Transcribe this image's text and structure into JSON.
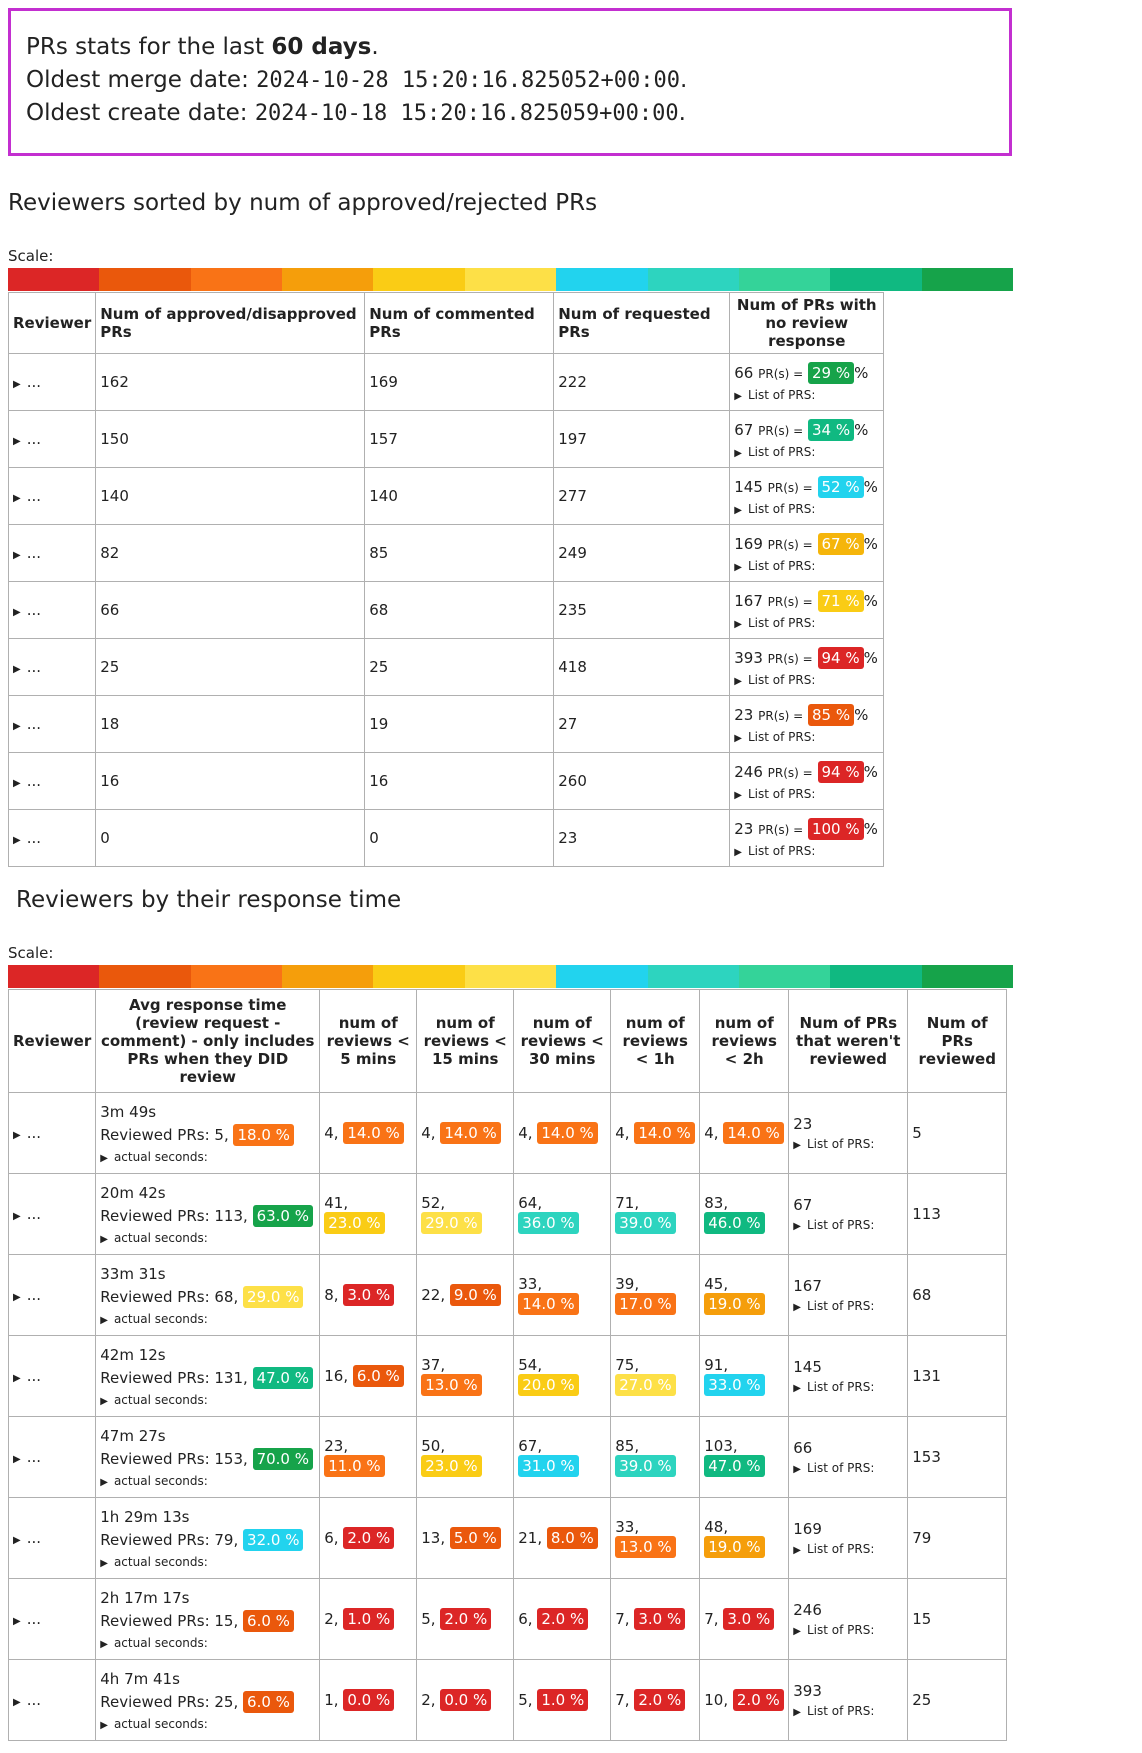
{
  "header": {
    "line1_prefix": "PRs stats for the last ",
    "line1_bold": "60 days",
    "line1_suffix": ".",
    "line2_label": "Oldest merge date: ",
    "line2_value": "2024-10-28 15:20:16.825052+00:00",
    "line3_label": "Oldest create date: ",
    "line3_value": "2024-10-18 15:20:16.825059+00:00",
    "period": "."
  },
  "scale": {
    "label": "Scale:",
    "colors": [
      "#dc2626",
      "#ea580c",
      "#f97316",
      "#f59e0b",
      "#facc15",
      "#fde047",
      "#22d3ee",
      "#2dd4bf",
      "#34d399",
      "#10b981",
      "#16a34a"
    ]
  },
  "table1": {
    "title": "Reviewers sorted by num of approved/rejected PRs",
    "headers": [
      "Reviewer",
      "Num of approved/disapproved PRs",
      "Num of commented PRs",
      "Num of requested PRs",
      "Num of PRs with no review response"
    ],
    "list_label": "List of PRS:",
    "prs_unit": "PR(s) =",
    "rows": [
      {
        "reviewer": "...",
        "approved": "162",
        "commented": "169",
        "requested": "222",
        "noresp_count": "66",
        "noresp_pct": "29 %",
        "pct_color": "#16a34a"
      },
      {
        "reviewer": "...",
        "approved": "150",
        "commented": "157",
        "requested": "197",
        "noresp_count": "67",
        "noresp_pct": "34 %",
        "pct_color": "#10b981"
      },
      {
        "reviewer": "...",
        "approved": "140",
        "commented": "140",
        "requested": "277",
        "noresp_count": "145",
        "noresp_pct": "52 %",
        "pct_color": "#22d3ee"
      },
      {
        "reviewer": "...",
        "approved": "82",
        "commented": "85",
        "requested": "249",
        "noresp_count": "169",
        "noresp_pct": "67 %",
        "pct_color": "#f5b50b"
      },
      {
        "reviewer": "...",
        "approved": "66",
        "commented": "68",
        "requested": "235",
        "noresp_count": "167",
        "noresp_pct": "71 %",
        "pct_color": "#facc15"
      },
      {
        "reviewer": "...",
        "approved": "25",
        "commented": "25",
        "requested": "418",
        "noresp_count": "393",
        "noresp_pct": "94 %",
        "pct_color": "#dc2626"
      },
      {
        "reviewer": "...",
        "approved": "18",
        "commented": "19",
        "requested": "27",
        "noresp_count": "23",
        "noresp_pct": "85 %",
        "pct_color": "#ea580c"
      },
      {
        "reviewer": "...",
        "approved": "16",
        "commented": "16",
        "requested": "260",
        "noresp_count": "246",
        "noresp_pct": "94 %",
        "pct_color": "#dc2626"
      },
      {
        "reviewer": "...",
        "approved": "0",
        "commented": "0",
        "requested": "23",
        "noresp_count": "23",
        "noresp_pct": "100 %",
        "pct_color": "#dc2626"
      }
    ]
  },
  "table2": {
    "title": "Reviewers by their response time",
    "headers": [
      "Reviewer",
      "Avg response time (review request - comment) - only includes PRs when they DID review",
      "num of reviews < 5 mins",
      "num of reviews < 15 mins",
      "num of reviews < 30 mins",
      "num of reviews < 1h",
      "num of reviews < 2h",
      "Num of PRs that weren't reviewed",
      "Num of PRs reviewed"
    ],
    "reviewed_label": "Reviewed PRs: ",
    "actual_label": "actual seconds:",
    "list_label": "List of PRS:",
    "rows": [
      {
        "reviewer": "...",
        "avg": "3m 49s",
        "reviewed": "5",
        "reviewed_pct": "18.0 %",
        "reviewed_color": "#f97316",
        "b": [
          [
            "4",
            "14.0 %",
            "#f97316"
          ],
          [
            "4",
            "14.0 %",
            "#f97316"
          ],
          [
            "4",
            "14.0 %",
            "#f97316"
          ],
          [
            "4",
            "14.0 %",
            "#f97316"
          ],
          [
            "4",
            "14.0 %",
            "#f97316"
          ]
        ],
        "not_reviewed": "23",
        "num_reviewed": "5"
      },
      {
        "reviewer": "...",
        "avg": "20m 42s",
        "reviewed": "113",
        "reviewed_pct": "63.0 %",
        "reviewed_color": "#16a34a",
        "b": [
          [
            "41",
            "23.0 %",
            "#facc15"
          ],
          [
            "52",
            "29.0 %",
            "#fde047"
          ],
          [
            "64",
            "36.0 %",
            "#2dd4bf"
          ],
          [
            "71",
            "39.0 %",
            "#2dd4bf"
          ],
          [
            "83",
            "46.0 %",
            "#10b981"
          ]
        ],
        "not_reviewed": "67",
        "num_reviewed": "113"
      },
      {
        "reviewer": "...",
        "avg": "33m 31s",
        "reviewed": "68",
        "reviewed_pct": "29.0 %",
        "reviewed_color": "#fde047",
        "b": [
          [
            "8",
            "3.0 %",
            "#dc2626"
          ],
          [
            "22",
            "9.0 %",
            "#ea580c"
          ],
          [
            "33",
            "14.0 %",
            "#f97316"
          ],
          [
            "39",
            "17.0 %",
            "#f97316"
          ],
          [
            "45",
            "19.0 %",
            "#f59e0b"
          ]
        ],
        "not_reviewed": "167",
        "num_reviewed": "68"
      },
      {
        "reviewer": "...",
        "avg": "42m 12s",
        "reviewed": "131",
        "reviewed_pct": "47.0 %",
        "reviewed_color": "#10b981",
        "b": [
          [
            "16",
            "6.0 %",
            "#ea580c"
          ],
          [
            "37",
            "13.0 %",
            "#f97316"
          ],
          [
            "54",
            "20.0 %",
            "#facc15"
          ],
          [
            "75",
            "27.0 %",
            "#fde047"
          ],
          [
            "91",
            "33.0 %",
            "#22d3ee"
          ]
        ],
        "not_reviewed": "145",
        "num_reviewed": "131"
      },
      {
        "reviewer": "...",
        "avg": "47m 27s",
        "reviewed": "153",
        "reviewed_pct": "70.0 %",
        "reviewed_color": "#16a34a",
        "b": [
          [
            "23",
            "11.0 %",
            "#f97316"
          ],
          [
            "50",
            "23.0 %",
            "#facc15"
          ],
          [
            "67",
            "31.0 %",
            "#22d3ee"
          ],
          [
            "85",
            "39.0 %",
            "#2dd4bf"
          ],
          [
            "103",
            "47.0 %",
            "#10b981"
          ]
        ],
        "not_reviewed": "66",
        "num_reviewed": "153"
      },
      {
        "reviewer": "...",
        "avg": "1h 29m 13s",
        "reviewed": "79",
        "reviewed_pct": "32.0 %",
        "reviewed_color": "#22d3ee",
        "b": [
          [
            "6",
            "2.0 %",
            "#dc2626"
          ],
          [
            "13",
            "5.0 %",
            "#ea580c"
          ],
          [
            "21",
            "8.0 %",
            "#ea580c"
          ],
          [
            "33",
            "13.0 %",
            "#f97316"
          ],
          [
            "48",
            "19.0 %",
            "#f59e0b"
          ]
        ],
        "not_reviewed": "169",
        "num_reviewed": "79"
      },
      {
        "reviewer": "...",
        "avg": "2h 17m 17s",
        "reviewed": "15",
        "reviewed_pct": "6.0 %",
        "reviewed_color": "#ea580c",
        "b": [
          [
            "2",
            "1.0 %",
            "#dc2626"
          ],
          [
            "5",
            "2.0 %",
            "#dc2626"
          ],
          [
            "6",
            "2.0 %",
            "#dc2626"
          ],
          [
            "7",
            "3.0 %",
            "#dc2626"
          ],
          [
            "7",
            "3.0 %",
            "#dc2626"
          ]
        ],
        "not_reviewed": "246",
        "num_reviewed": "15"
      },
      {
        "reviewer": "...",
        "avg": "4h 7m 41s",
        "reviewed": "25",
        "reviewed_pct": "6.0 %",
        "reviewed_color": "#ea580c",
        "b": [
          [
            "1",
            "0.0 %",
            "#dc2626"
          ],
          [
            "2",
            "0.0 %",
            "#dc2626"
          ],
          [
            "5",
            "1.0 %",
            "#dc2626"
          ],
          [
            "7",
            "2.0 %",
            "#dc2626"
          ],
          [
            "10",
            "2.0 %",
            "#dc2626"
          ]
        ],
        "not_reviewed": "393",
        "num_reviewed": "25"
      }
    ]
  }
}
